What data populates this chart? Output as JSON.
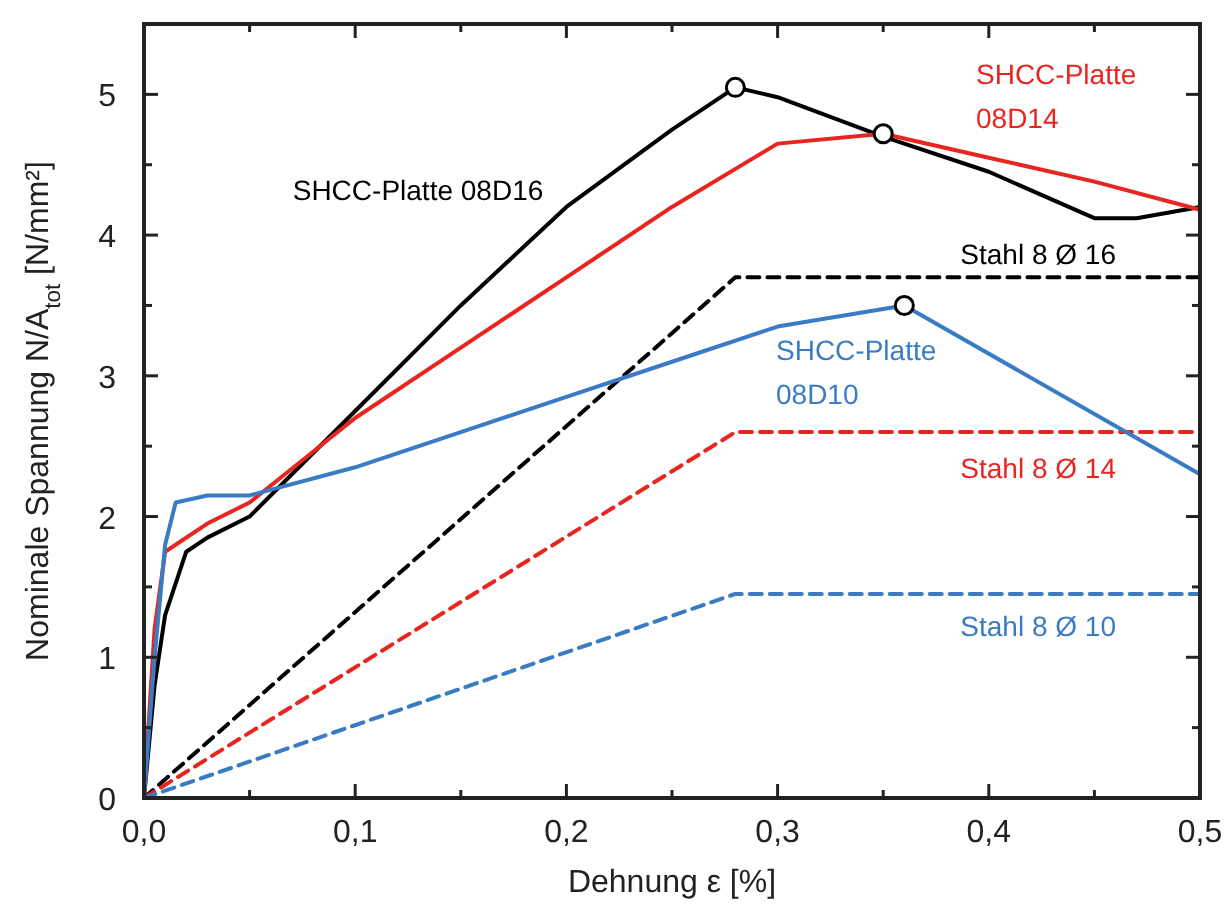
{
  "chart_data": {
    "type": "line",
    "xlabel": "Dehnung ε [%]",
    "ylabel": "Nominale Spannung N/A$_{tot}$ [N/mm²]",
    "xlim": [
      0,
      0.5
    ],
    "ylim": [
      0,
      5.5
    ],
    "xticks": [
      {
        "value": 0,
        "label": "0,0"
      },
      {
        "value": 0.05,
        "label": null
      },
      {
        "value": 0.1,
        "label": "0,1"
      },
      {
        "value": 0.15,
        "label": null
      },
      {
        "value": 0.2,
        "label": "0,2"
      },
      {
        "value": 0.25,
        "label": null
      },
      {
        "value": 0.3,
        "label": "0,3"
      },
      {
        "value": 0.35,
        "label": null
      },
      {
        "value": 0.4,
        "label": "0,4"
      },
      {
        "value": 0.45,
        "label": null
      },
      {
        "value": 0.5,
        "label": "0,5"
      }
    ],
    "yticks": [
      0,
      {
        "value": 0.5,
        "label": null
      },
      1,
      {
        "value": 1.5,
        "label": null
      },
      2,
      {
        "value": 2.5,
        "label": null
      },
      3,
      {
        "value": 3.5,
        "label": null
      },
      4,
      {
        "value": 4.5,
        "label": null
      },
      5
    ],
    "grid": false,
    "marker": "none",
    "line_style": "solid",
    "series": [
      {
        "name": "Stahl 8 Ø 16",
        "color": "#000000",
        "line_style": "dashed",
        "x": [
          0,
          0.28,
          0.5
        ],
        "values": [
          0,
          3.7,
          3.7
        ]
      },
      {
        "name": "Stahl 8 Ø 14",
        "color": "#e8251f",
        "line_style": "dashed",
        "x": [
          0,
          0.28,
          0.5
        ],
        "values": [
          0,
          2.6,
          2.6
        ]
      },
      {
        "name": "Stahl 8 Ø 10",
        "color": "#3a7cc4",
        "line_style": "dashed",
        "x": [
          0,
          0.28,
          0.5
        ],
        "values": [
          0,
          1.45,
          1.45
        ]
      },
      {
        "name": "SHCC-Platte 08D16",
        "color": "#000000",
        "x": [
          0,
          0.005,
          0.01,
          0.02,
          0.03,
          0.05,
          0.1,
          0.15,
          0.2,
          0.25,
          0.28,
          0.3,
          0.35,
          0.4,
          0.45,
          0.47,
          0.5
        ],
        "values": [
          0,
          0.8,
          1.3,
          1.75,
          1.85,
          2.0,
          2.75,
          3.5,
          4.2,
          4.75,
          5.05,
          4.98,
          4.7,
          4.45,
          4.12,
          4.12,
          4.2
        ]
      },
      {
        "name": "SHCC-Platte 08D14",
        "color": "#e8251f",
        "x": [
          0,
          0.005,
          0.01,
          0.03,
          0.05,
          0.1,
          0.15,
          0.2,
          0.25,
          0.3,
          0.35,
          0.4,
          0.45,
          0.5
        ],
        "values": [
          0,
          1.2,
          1.75,
          1.95,
          2.1,
          2.7,
          3.2,
          3.7,
          4.2,
          4.65,
          4.72,
          4.55,
          4.38,
          4.18
        ]
      },
      {
        "name": "SHCC-Platte 08D10",
        "color": "#3a7cc4",
        "x": [
          0,
          0.005,
          0.01,
          0.015,
          0.03,
          0.05,
          0.1,
          0.15,
          0.2,
          0.25,
          0.3,
          0.36,
          0.5
        ],
        "values": [
          0,
          1.0,
          1.8,
          2.1,
          2.15,
          2.15,
          2.35,
          2.6,
          2.85,
          3.1,
          3.35,
          3.5,
          2.3
        ]
      },
      {
        "type": "scatter",
        "marker": "circle",
        "color": "#000000",
        "x": [
          0.28,
          0.35,
          0.36
        ],
        "values": [
          5.05,
          4.72,
          3.5
        ]
      }
    ]
  }
}
